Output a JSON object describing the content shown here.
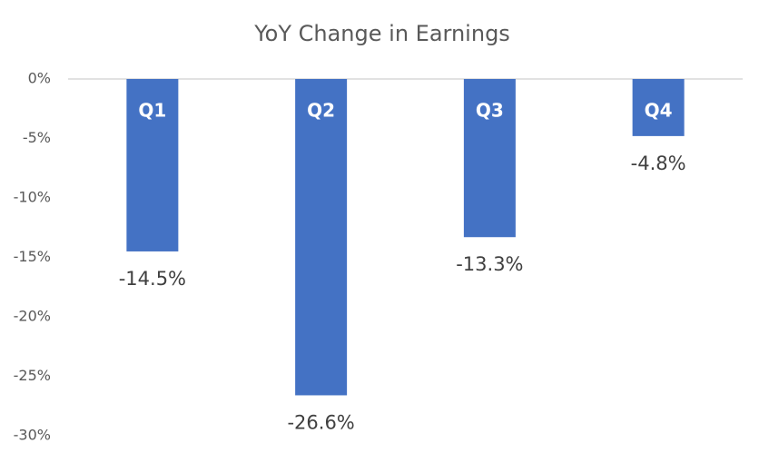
{
  "chart_data": {
    "type": "bar",
    "title": "YoY Change in Earnings",
    "categories": [
      "Q1",
      "Q2",
      "Q3",
      "Q4"
    ],
    "values": [
      -14.5,
      -26.6,
      -13.3,
      -4.8
    ],
    "value_labels": [
      "-14.5%",
      "-26.6%",
      "-13.3%",
      "-4.8%"
    ],
    "color": "#4472c4",
    "ylim": [
      -30,
      0
    ],
    "yticks": [
      {
        "value": 0,
        "label": "0%"
      },
      {
        "value": -5,
        "label": "-5%"
      },
      {
        "value": -10,
        "label": "-10%"
      },
      {
        "value": -15,
        "label": "-15%"
      },
      {
        "value": -20,
        "label": "-20%"
      },
      {
        "value": -25,
        "label": "-25%"
      },
      {
        "value": -30,
        "label": "-30%"
      }
    ]
  }
}
